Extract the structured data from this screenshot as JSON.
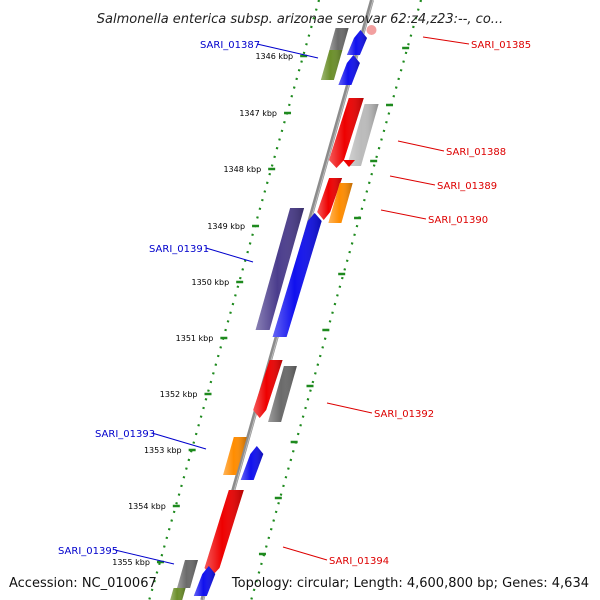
{
  "title": "Salmonella enterica subsp. arizonae serovar 62:z4,z23:--, co...",
  "accession_text": "Accession: NC_010067",
  "summary_text": "Topology: circular; Length: 4,600,800 bp; Genes: 4,634",
  "colors": {
    "backbone": "#8c8c8c",
    "dotted_track": "#1e8a1e",
    "left_label": "#0000cc",
    "right_label": "#dd0000"
  },
  "ticks": [
    {
      "label": "1346 kbp"
    },
    {
      "label": "1347 kbp"
    },
    {
      "label": "1348 kbp"
    },
    {
      "label": "1349 kbp"
    },
    {
      "label": "1350 kbp"
    },
    {
      "label": "1351 kbp"
    },
    {
      "label": "1352 kbp"
    },
    {
      "label": "1353 kbp"
    },
    {
      "label": "1354 kbp"
    },
    {
      "label": "1355 kbp"
    }
  ],
  "labels_left": [
    {
      "text": "SARI_01387"
    },
    {
      "text": "SARI_01391"
    },
    {
      "text": "SARI_01393"
    },
    {
      "text": "SARI_01395"
    }
  ],
  "labels_right": [
    {
      "text": "SARI_01385"
    },
    {
      "text": "SARI_01388"
    },
    {
      "text": "SARI_01389"
    },
    {
      "text": "SARI_01390"
    },
    {
      "text": "SARI_01392"
    },
    {
      "text": "SARI_01394"
    }
  ],
  "features": [
    {
      "color": "#6a6a6a"
    },
    {
      "color": "#6b8f2a"
    },
    {
      "color": "#1010ee"
    },
    {
      "color": "#1010ee"
    },
    {
      "color": "#ee0000"
    },
    {
      "color": "#bbbbbb"
    },
    {
      "color": "#ee0000"
    },
    {
      "color": "#ff8c00"
    },
    {
      "color": "#4a3c8c"
    },
    {
      "color": "#1010ee"
    },
    {
      "color": "#ee0000"
    },
    {
      "color": "#6a6a6a"
    },
    {
      "color": "#ff8c00"
    },
    {
      "color": "#1010ee"
    },
    {
      "color": "#ee0000"
    },
    {
      "color": "#6a6a6a"
    },
    {
      "color": "#1010ee"
    },
    {
      "color": "#6b8f2a"
    },
    {
      "color": "#ee0000"
    }
  ]
}
